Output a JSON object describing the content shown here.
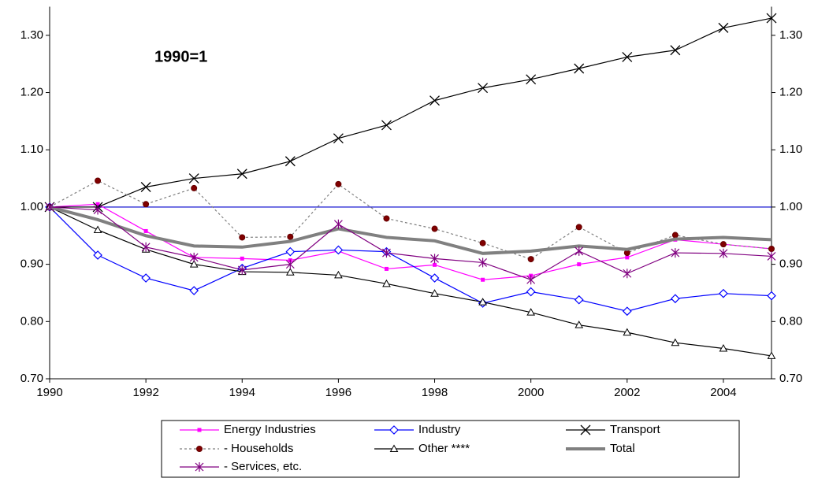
{
  "chart_data": {
    "type": "line",
    "annotation": "1990=1",
    "x": [
      1990,
      1991,
      1992,
      1993,
      1994,
      1995,
      1996,
      1997,
      1998,
      1999,
      2000,
      2001,
      2002,
      2003,
      2004,
      2005
    ],
    "xlim": [
      1990,
      2005
    ],
    "xticks": [
      1990,
      1992,
      1994,
      1996,
      1998,
      2000,
      2002,
      2004
    ],
    "ylim": [
      0.7,
      1.35
    ],
    "yticks": [
      {
        "value": 0.7,
        "label": "0.70"
      },
      {
        "value": 0.8,
        "label": "0.80"
      },
      {
        "value": 0.9,
        "label": "0.90"
      },
      {
        "value": 1.0,
        "label": "1.00"
      },
      {
        "value": 1.1,
        "label": "1.10"
      },
      {
        "value": 1.2,
        "label": "1.20"
      },
      {
        "value": 1.3,
        "label": "1.30"
      }
    ],
    "y2lim": [
      0.7,
      1.35
    ],
    "y2ticks": [
      {
        "value": 0.7,
        "label": "0.70"
      },
      {
        "value": 0.8,
        "label": "0.80"
      },
      {
        "value": 0.9,
        "label": "0.90"
      },
      {
        "value": 1.0,
        "label": "1.00"
      },
      {
        "value": 1.1,
        "label": "1.10"
      },
      {
        "value": 1.2,
        "label": "1.20"
      },
      {
        "value": 1.3,
        "label": "1.30"
      }
    ],
    "reference_line": {
      "value": 1.0,
      "color": "#0000cc"
    },
    "series": [
      {
        "name": "Energy Industries",
        "color": "#ff00ff",
        "marker": "square",
        "values": [
          1.0,
          1.005,
          0.958,
          0.912,
          0.91,
          0.907,
          0.923,
          0.892,
          0.899,
          0.873,
          0.88,
          0.9,
          0.912,
          0.943,
          0.935,
          0.927
        ]
      },
      {
        "name": "Industry",
        "color": "#0000ff",
        "marker": "diamond",
        "values": [
          1.0,
          0.916,
          0.876,
          0.854,
          0.893,
          0.922,
          0.925,
          0.922,
          0.876,
          0.832,
          0.852,
          0.838,
          0.818,
          0.84,
          0.849,
          0.845
        ]
      },
      {
        "name": "Transport",
        "color": "#000000",
        "marker": "x",
        "values": [
          1.0,
          1.0,
          1.035,
          1.05,
          1.058,
          1.08,
          1.12,
          1.143,
          1.186,
          1.208,
          1.223,
          1.242,
          1.262,
          1.274,
          1.313,
          1.33
        ]
      },
      {
        "name": "- Households",
        "color": "#808080",
        "marker_color": "#800000",
        "marker": "circle",
        "dash": "dotted",
        "values": [
          1.0,
          1.046,
          1.005,
          1.033,
          0.947,
          0.948,
          1.04,
          0.98,
          0.962,
          0.937,
          0.909,
          0.965,
          0.92,
          0.951,
          0.935,
          0.927
        ]
      },
      {
        "name": "Other ****",
        "color": "#000000",
        "marker": "triangle",
        "values": [
          1.0,
          0.96,
          0.926,
          0.9,
          0.887,
          0.886,
          0.881,
          0.866,
          0.849,
          0.834,
          0.816,
          0.794,
          0.781,
          0.763,
          0.753,
          0.74
        ]
      },
      {
        "name": "Total",
        "color": "#808080",
        "marker": "none",
        "width": 4,
        "values": [
          1.0,
          0.978,
          0.95,
          0.932,
          0.93,
          0.94,
          0.962,
          0.947,
          0.941,
          0.919,
          0.923,
          0.932,
          0.926,
          0.944,
          0.947,
          0.943
        ]
      },
      {
        "name": "- Services, etc.",
        "color": "#800080",
        "marker": "star",
        "values": [
          1.0,
          0.995,
          0.93,
          0.912,
          0.89,
          0.9,
          0.97,
          0.92,
          0.91,
          0.903,
          0.873,
          0.923,
          0.884,
          0.92,
          0.919,
          0.914
        ]
      }
    ]
  }
}
